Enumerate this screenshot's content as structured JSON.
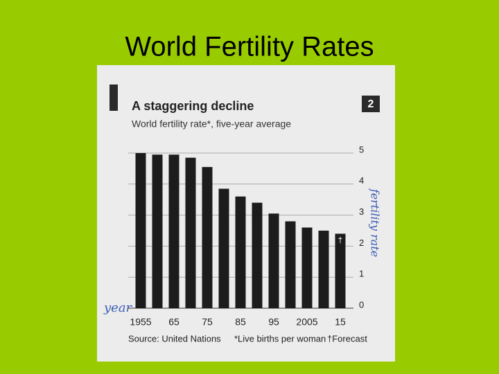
{
  "slide": {
    "title": "World Fertility Rates"
  },
  "chart_data": {
    "type": "bar",
    "title": "A staggering decline",
    "subtitle": "World fertility rate*, five-year average",
    "badge": "2",
    "categories": [
      "1955",
      null,
      "65",
      null,
      "75",
      null,
      "85",
      null,
      "95",
      null,
      "2005",
      null,
      "15"
    ],
    "values": [
      5.0,
      4.95,
      4.95,
      4.85,
      4.55,
      3.85,
      3.6,
      3.4,
      3.05,
      2.8,
      2.6,
      2.5,
      2.4
    ],
    "color": "#1c1c1c",
    "forecast_marker": "†",
    "ylim": [
      0,
      5
    ],
    "yticks": [
      0,
      1,
      2,
      3,
      4,
      5
    ],
    "grid": true,
    "source": "Source: United Nations",
    "footnote": "*Live births per woman",
    "forecast_note": "†Forecast",
    "annotations": [
      "year",
      "fertility rate"
    ]
  }
}
